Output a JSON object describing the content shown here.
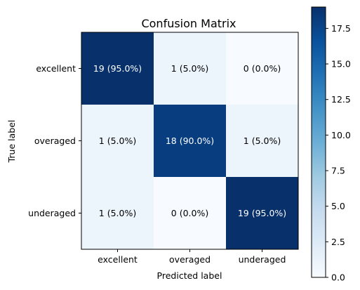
{
  "chart_data": {
    "type": "heatmap",
    "title": "Confusion Matrix",
    "xlabel": "Predicted label",
    "ylabel": "True label",
    "x_categories": [
      "excellent",
      "overaged",
      "underaged"
    ],
    "y_categories": [
      "excellent",
      "overaged",
      "underaged"
    ],
    "values": [
      [
        19,
        1,
        0
      ],
      [
        1,
        18,
        1
      ],
      [
        1,
        0,
        19
      ]
    ],
    "cell_labels": [
      [
        "19 (95.0%)",
        "1 (5.0%)",
        "0 (0.0%)"
      ],
      [
        "1 (5.0%)",
        "18 (90.0%)",
        "1 (5.0%)"
      ],
      [
        "1 (5.0%)",
        "0 (0.0%)",
        "19 (95.0%)"
      ]
    ],
    "colormap": "Blues",
    "colorbar": {
      "range": [
        0,
        19
      ],
      "ticks": [
        0.0,
        2.5,
        5.0,
        7.5,
        10.0,
        12.5,
        15.0,
        17.5
      ],
      "tick_labels": [
        "0.0",
        "2.5",
        "5.0",
        "7.5",
        "10.0",
        "12.5",
        "15.0",
        "17.5"
      ]
    },
    "grid": false
  },
  "colors": {
    "low": "#f7fbff",
    "high": "#08306b",
    "text_dark": "#000000",
    "text_light": "#ffffff"
  }
}
